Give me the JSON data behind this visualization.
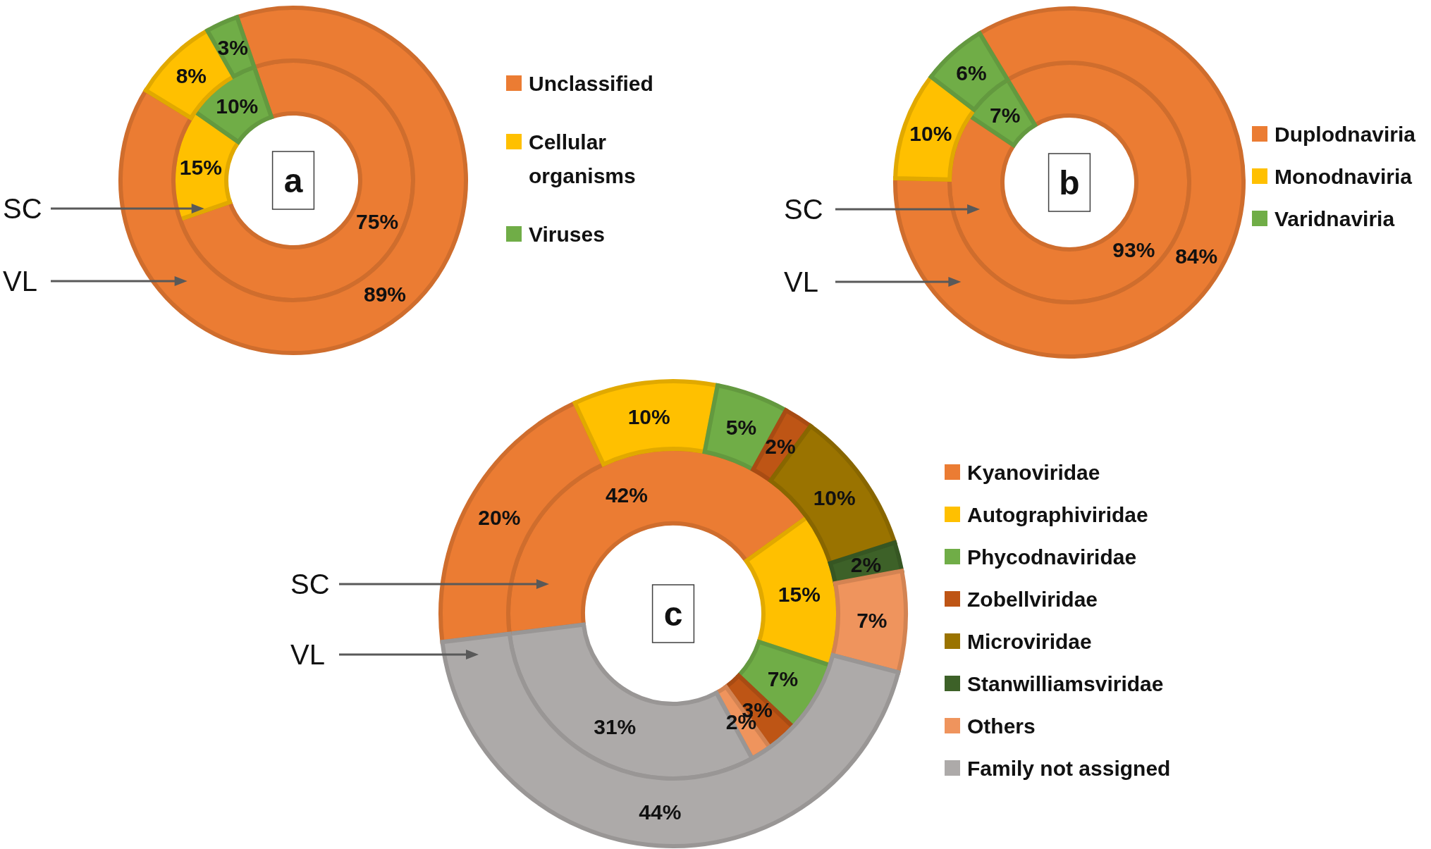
{
  "chart_data": [
    {
      "type": "donut",
      "title": "a",
      "categories": [
        "Unclassified",
        "Cellular organisms",
        "Viruses"
      ],
      "colors": [
        "#eb7c33",
        "#ffc000",
        "#70ad47"
      ],
      "series": [
        {
          "name": "SC",
          "values": [
            75,
            15,
            10
          ],
          "value_labels": [
            "75%",
            "15%",
            "10%"
          ]
        },
        {
          "name": "VL",
          "values": [
            89,
            8,
            3
          ],
          "value_labels": [
            "89%",
            "8%",
            "3%"
          ]
        }
      ],
      "legend": "right"
    },
    {
      "type": "donut",
      "title": "b",
      "categories": [
        "Duplodnaviria",
        "Monodnaviria",
        "Varidnaviria"
      ],
      "colors": [
        "#eb7c33",
        "#ffc000",
        "#70ad47"
      ],
      "series": [
        {
          "name": "SC",
          "values": [
            93,
            null,
            7
          ],
          "value_labels": [
            "93%",
            null,
            "7%"
          ]
        },
        {
          "name": "VL",
          "values": [
            84,
            10,
            6
          ],
          "value_labels": [
            "84%",
            "10%",
            "6%"
          ]
        }
      ],
      "legend": "right"
    },
    {
      "type": "donut",
      "title": "c",
      "categories": [
        "Kyanoviridae",
        "Autographiviridae",
        "Phycodnaviridae",
        "Zobellviridae",
        "Microviridae",
        "Stanwilliamsviridae",
        "Others",
        "Family not assigned"
      ],
      "colors": [
        "#eb7c33",
        "#ffc000",
        "#70ad47",
        "#be5515",
        "#9a7300",
        "#3d6128",
        "#ef945d",
        "#adaaa9"
      ],
      "series": [
        {
          "name": "SC",
          "values": [
            42,
            15,
            7,
            3,
            null,
            null,
            2,
            31
          ],
          "value_labels": [
            "42%",
            "15%",
            "7%",
            "3%",
            null,
            null,
            "2%",
            "31%"
          ]
        },
        {
          "name": "VL",
          "values": [
            20,
            10,
            5,
            2,
            10,
            2,
            7,
            44
          ],
          "value_labels": [
            "20%",
            "10%",
            "5%",
            "2%",
            "10%",
            "2%",
            "7%",
            "44%"
          ]
        }
      ],
      "legend": "right"
    }
  ]
}
